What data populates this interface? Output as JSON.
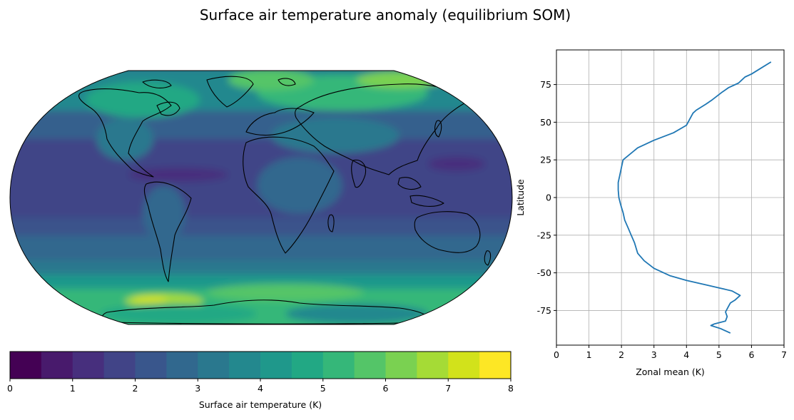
{
  "figure": {
    "title": "Surface air temperature anomaly (equilibrium SOM)"
  },
  "chart_data": [
    {
      "type": "heatmap",
      "description_kind": "global map, Robinson projection, filled contours",
      "colormap": "viridis",
      "levels": [
        0,
        0.5,
        1,
        1.5,
        2,
        2.5,
        3,
        3.5,
        4,
        4.5,
        5,
        5.5,
        6,
        6.5,
        7,
        7.5,
        8
      ],
      "level_colors": [
        "#440154",
        "#481a6c",
        "#472f7d",
        "#414487",
        "#39568c",
        "#31688e",
        "#2a788e",
        "#23888e",
        "#1f988b",
        "#22a884",
        "#35b779",
        "#54c568",
        "#7ad151",
        "#a5db36",
        "#d2e21b",
        "#fde725"
      ],
      "colorbar": {
        "label": "Surface air temperature (K)",
        "ticks": [
          0,
          1,
          2,
          3,
          4,
          5,
          6,
          7,
          8
        ],
        "placement": "bottom"
      }
    },
    {
      "type": "line",
      "xlabel": "Zonal mean (K)",
      "ylabel": "Latitude",
      "xlim": [
        0,
        7
      ],
      "ylim": [
        -98,
        98
      ],
      "xticks": [
        0,
        1,
        2,
        3,
        4,
        5,
        6,
        7
      ],
      "yticks": [
        -75,
        -50,
        -25,
        0,
        25,
        50,
        75
      ],
      "grid": true,
      "color": "#1f77b4",
      "x": [
        5.35,
        5.05,
        4.75,
        4.85,
        5.2,
        5.25,
        5.2,
        5.3,
        5.35,
        5.5,
        5.65,
        5.4,
        5.0,
        4.6,
        4.0,
        3.5,
        3.0,
        2.7,
        2.5,
        2.4,
        2.3,
        2.2,
        2.1,
        2.05,
        1.98,
        1.92,
        1.9,
        1.9,
        1.95,
        2.0,
        2.05,
        2.5,
        3.0,
        3.6,
        4.0,
        4.1,
        4.2,
        4.3,
        4.6,
        4.8,
        5.1,
        5.3,
        5.6,
        5.7,
        5.8,
        6.0,
        6.3,
        6.6
      ],
      "y": [
        -90,
        -87,
        -85,
        -84,
        -82,
        -79,
        -76,
        -72,
        -70,
        -68,
        -65,
        -62,
        -60,
        -58,
        -55,
        -52,
        -47,
        -42,
        -37,
        -30,
        -25,
        -20,
        -15,
        -10,
        -5,
        0,
        5,
        10,
        15,
        20,
        25,
        33,
        38,
        43,
        48,
        52,
        56,
        58,
        62,
        65,
        70,
        73,
        76,
        78,
        80,
        82,
        86,
        90
      ]
    }
  ]
}
